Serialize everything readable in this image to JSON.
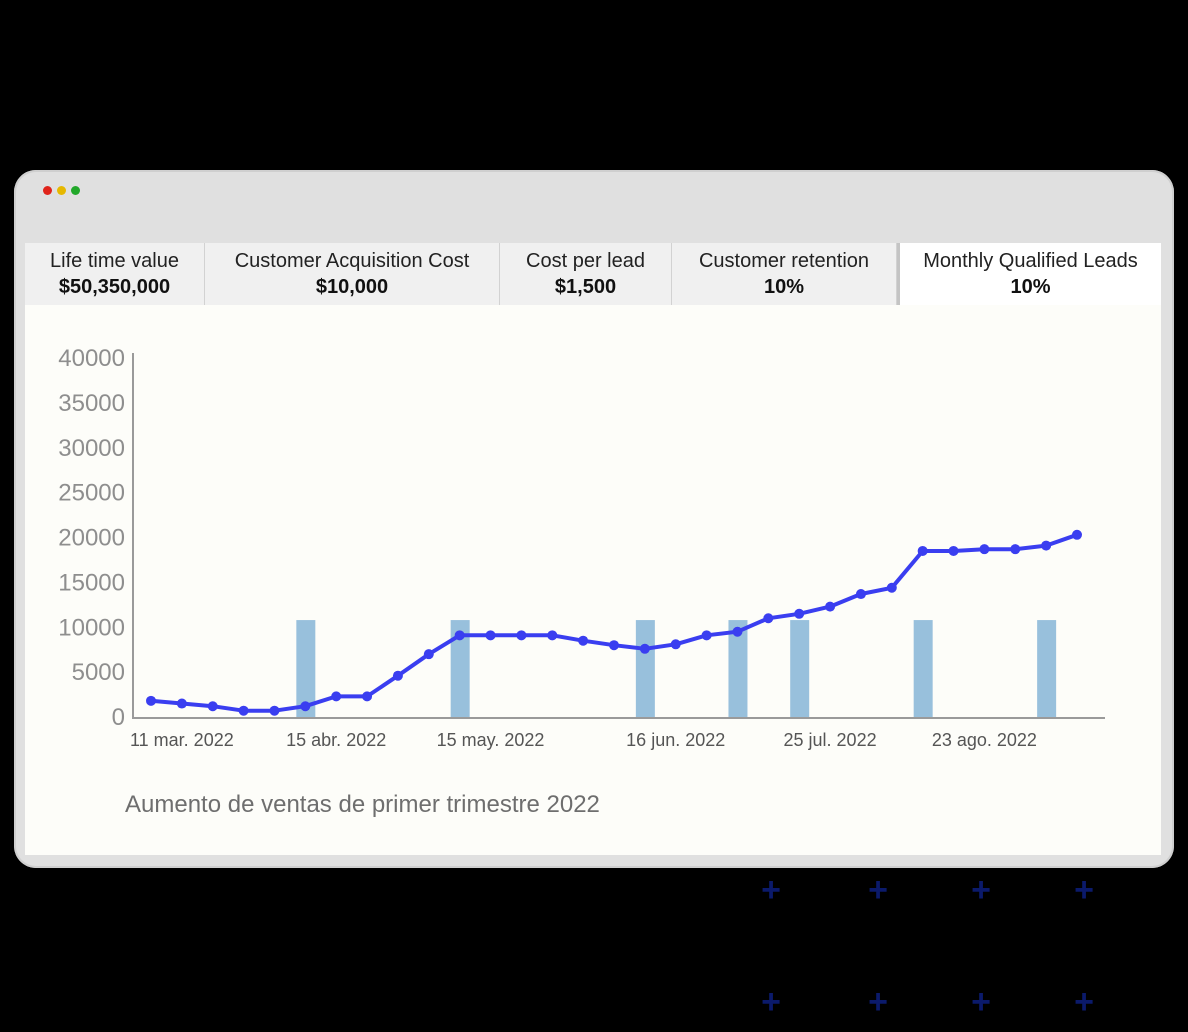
{
  "window": {
    "controls": [
      {
        "name": "close",
        "color": "#e0241b"
      },
      {
        "name": "minimize",
        "color": "#e6b800"
      },
      {
        "name": "maximize",
        "color": "#22a82a"
      }
    ]
  },
  "tabs": [
    {
      "label": "Life time value",
      "value": "$50,350,000",
      "active": false
    },
    {
      "label": "Customer Acquisition Cost",
      "value": "$10,000",
      "active": false
    },
    {
      "label": "Cost per lead",
      "value": "$1,500",
      "active": false
    },
    {
      "label": "Customer retention",
      "value": "10%",
      "active": false
    },
    {
      "label": "Monthly Qualified Leads",
      "value": "10%",
      "active": true
    }
  ],
  "chart_data": {
    "type": "line",
    "title": "",
    "caption": "Aumento de ventas de primer trimestre 2022",
    "xlabel": "",
    "ylabel": "",
    "ylim": [
      0,
      40000
    ],
    "y_ticks": [
      0,
      5000,
      10000,
      15000,
      20000,
      25000,
      30000,
      35000,
      40000
    ],
    "x_ticks": [
      "11 mar. 2022",
      "15 abr. 2022",
      "15 may. 2022",
      "16 jun. 2022",
      "25 jul. 2022",
      "23 ago. 2022"
    ],
    "grid": false,
    "line_color": "#3a3ef0",
    "bar_color": "#98c0dc",
    "series": [
      {
        "values": [
          1800,
          1500,
          1200,
          700,
          700,
          1200,
          2300,
          2300,
          4600,
          7000,
          9100,
          9100,
          9100,
          9100,
          8500,
          8000,
          7600,
          8100,
          9100,
          9500,
          11000,
          11500,
          12300,
          13700,
          14400,
          18500,
          18500,
          18700,
          18700,
          19100,
          20300
        ]
      }
    ],
    "bars": [
      {
        "index": 5,
        "value": 10800
      },
      {
        "index": 10,
        "value": 10800
      },
      {
        "index": 16,
        "value": 10800
      },
      {
        "index": 19,
        "value": 10800
      },
      {
        "index": 21,
        "value": 10800
      },
      {
        "index": 25,
        "value": 10800
      },
      {
        "index": 29,
        "value": 10800
      }
    ]
  },
  "decorations": {
    "plus_glyph": "+",
    "plus_color": "#0b1a6b"
  }
}
